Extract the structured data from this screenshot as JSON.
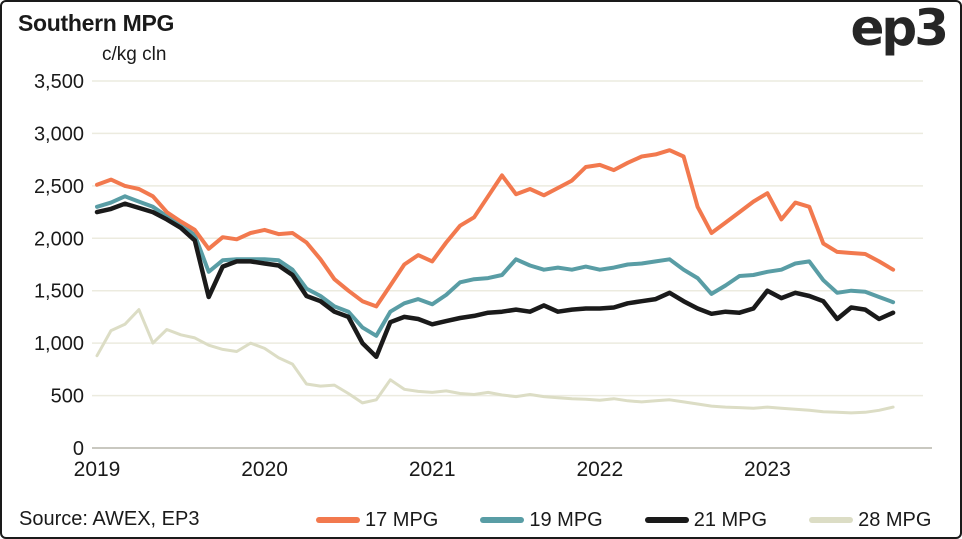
{
  "header": {
    "title": "Southern MPG",
    "logo_text": "ep3"
  },
  "footer": {
    "source": "Source: AWEX, EP3"
  },
  "colors": {
    "text": "#1a1a1a",
    "background": "#ffffff",
    "border": "#1a1a1a",
    "gridline": "#ecebdf",
    "zero_line": "#c9c8c0"
  },
  "chart_data": {
    "type": "line",
    "title": "Southern MPG",
    "ylabel": "c/kg cln",
    "ylim": [
      0,
      3500
    ],
    "grid": true,
    "legend_position": "bottom",
    "y_tick_values": [
      0,
      500,
      1000,
      1500,
      2000,
      2500,
      3000,
      3500
    ],
    "y_tick_labels": [
      "0",
      "500",
      "1,000",
      "1,500",
      "2,000",
      "2,500",
      "3,000",
      "3,500"
    ],
    "x_tick_labels": [
      "2019",
      "2020",
      "2021",
      "2022",
      "2023"
    ],
    "x_axis_note": "monthly samples, Jan 2019 - Oct 2023",
    "series": [
      {
        "name": "17 MPG",
        "color": "#f2794e",
        "stroke_width": 4,
        "values": [
          2510,
          2560,
          2500,
          2470,
          2400,
          2250,
          2160,
          2080,
          1900,
          2010,
          1990,
          2050,
          2080,
          2040,
          2050,
          1960,
          1800,
          1610,
          1500,
          1400,
          1350,
          1550,
          1750,
          1840,
          1780,
          1960,
          2120,
          2200,
          2400,
          2600,
          2420,
          2470,
          2410,
          2480,
          2550,
          2680,
          2700,
          2650,
          2720,
          2780,
          2800,
          2840,
          2780,
          2300,
          2050,
          2150,
          2250,
          2350,
          2430,
          2180,
          2340,
          2300,
          1950,
          1870,
          1860,
          1850,
          1780,
          1700
        ]
      },
      {
        "name": "19 MPG",
        "color": "#599da5",
        "stroke_width": 4,
        "values": [
          2300,
          2340,
          2400,
          2350,
          2300,
          2210,
          2130,
          2030,
          1680,
          1790,
          1800,
          1800,
          1800,
          1790,
          1700,
          1520,
          1450,
          1350,
          1300,
          1150,
          1070,
          1300,
          1380,
          1420,
          1370,
          1460,
          1580,
          1610,
          1620,
          1650,
          1800,
          1740,
          1700,
          1720,
          1700,
          1730,
          1700,
          1720,
          1750,
          1760,
          1780,
          1800,
          1700,
          1620,
          1470,
          1550,
          1640,
          1650,
          1680,
          1700,
          1760,
          1780,
          1600,
          1480,
          1500,
          1490,
          1440,
          1390
        ]
      },
      {
        "name": "21 MPG",
        "color": "#1a1a1a",
        "stroke_width": 4.5,
        "values": [
          2250,
          2280,
          2330,
          2290,
          2250,
          2180,
          2100,
          1980,
          1440,
          1730,
          1780,
          1780,
          1760,
          1740,
          1650,
          1450,
          1400,
          1300,
          1250,
          1000,
          870,
          1200,
          1250,
          1230,
          1180,
          1210,
          1240,
          1260,
          1290,
          1300,
          1320,
          1300,
          1360,
          1300,
          1320,
          1330,
          1330,
          1340,
          1380,
          1400,
          1420,
          1480,
          1400,
          1330,
          1280,
          1300,
          1290,
          1330,
          1500,
          1430,
          1480,
          1450,
          1400,
          1230,
          1340,
          1320,
          1230,
          1290
        ]
      },
      {
        "name": "28 MPG",
        "color": "#dcddc5",
        "stroke_width": 3,
        "values": [
          880,
          1120,
          1180,
          1320,
          1000,
          1130,
          1080,
          1050,
          980,
          940,
          920,
          1000,
          950,
          860,
          800,
          610,
          590,
          600,
          520,
          430,
          460,
          650,
          560,
          540,
          530,
          545,
          520,
          510,
          530,
          505,
          490,
          510,
          490,
          480,
          470,
          465,
          455,
          470,
          450,
          440,
          450,
          460,
          440,
          420,
          400,
          390,
          385,
          380,
          390,
          380,
          370,
          360,
          345,
          340,
          335,
          340,
          360,
          390
        ]
      }
    ]
  }
}
